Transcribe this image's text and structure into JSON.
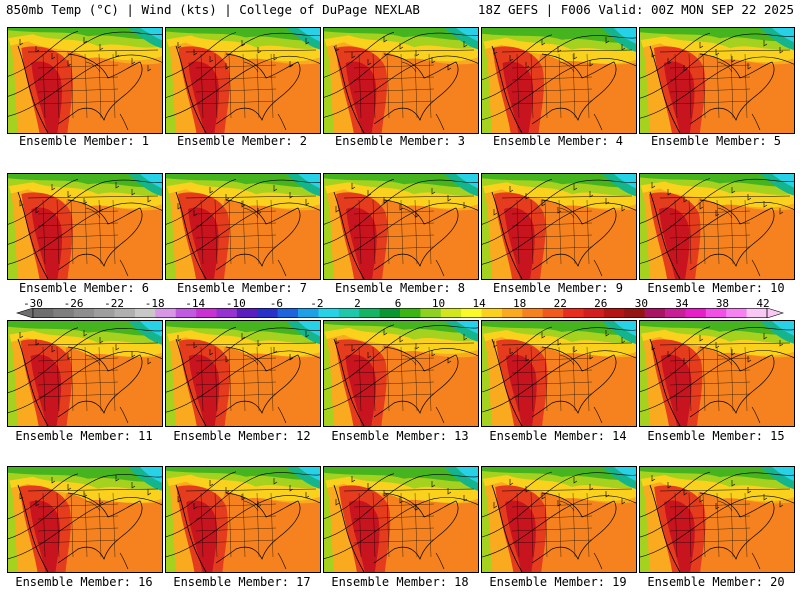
{
  "header": {
    "left": "850mb Temp (°C) | Wind (kts) | College of DuPage NEXLAB",
    "right": "18Z GEFS | F006 Valid: 00Z MON SEP 22 2025"
  },
  "members": [
    "Ensemble Member: 1",
    "Ensemble Member: 2",
    "Ensemble Member: 3",
    "Ensemble Member: 4",
    "Ensemble Member: 5",
    "Ensemble Member: 6",
    "Ensemble Member: 7",
    "Ensemble Member: 8",
    "Ensemble Member: 9",
    "Ensemble Member: 10",
    "Ensemble Member: 11",
    "Ensemble Member: 12",
    "Ensemble Member: 13",
    "Ensemble Member: 14",
    "Ensemble Member: 15",
    "Ensemble Member: 16",
    "Ensemble Member: 17",
    "Ensemble Member: 18",
    "Ensemble Member: 19",
    "Ensemble Member: 20"
  ],
  "scale": {
    "labels": [
      "-30",
      "-26",
      "-22",
      "-18",
      "-14",
      "-10",
      "-6",
      "-2",
      "2",
      "6",
      "10",
      "14",
      "18",
      "22",
      "26",
      "30",
      "34",
      "38",
      "42"
    ],
    "colors": [
      "#6e6e6e",
      "#7e7e7e",
      "#8e8e8e",
      "#9e9e9e",
      "#b0b0b0",
      "#c8c8c8",
      "#d896e6",
      "#c05ae0",
      "#c832d2",
      "#9632d2",
      "#5a1ebe",
      "#2832c8",
      "#1e64dc",
      "#1ea0e6",
      "#28d2e6",
      "#1ec8aa",
      "#14b464",
      "#0a9632",
      "#3cb414",
      "#8cd21e",
      "#d2e61e",
      "#fafa28",
      "#fad21e",
      "#faaa1e",
      "#f5821e",
      "#f05a1e",
      "#e62d1e",
      "#d21e1e",
      "#b41414",
      "#961414",
      "#aa1464",
      "#c81e96",
      "#e61ec8",
      "#f050e6",
      "#f582f0",
      "#fac8f5"
    ]
  },
  "colors": {
    "hot_core": "#c8141e",
    "hot": "#e63c1e",
    "warm": "#f5821e",
    "mild": "#faaa1e",
    "yellow": "#fad21e",
    "lime": "#a5d21e",
    "green": "#46b41e",
    "teal": "#14b48c",
    "cyan": "#28d2e6"
  }
}
